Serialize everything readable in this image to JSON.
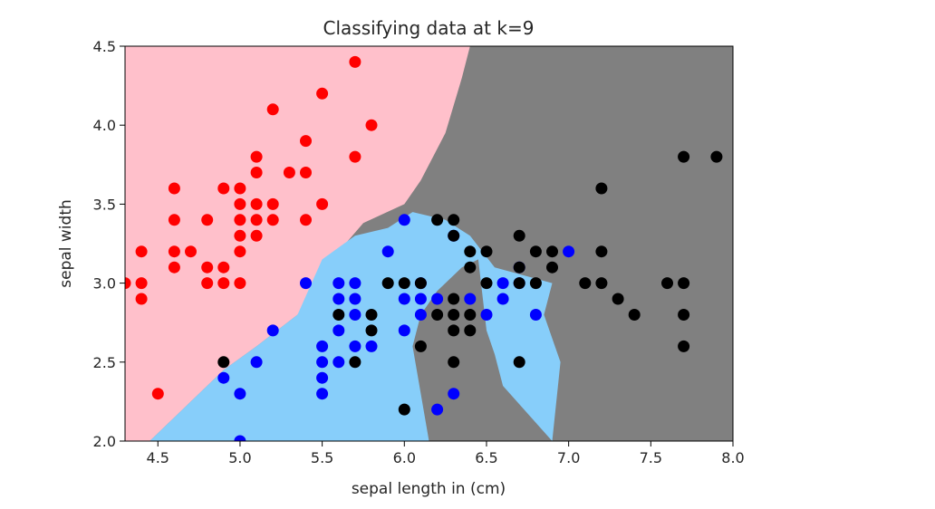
{
  "chart_data": {
    "type": "scatter",
    "title": "Classifying data at k=9",
    "xlabel": "sepal length in (cm)",
    "ylabel": "sepal width",
    "xlim": [
      4.3,
      8.0
    ],
    "ylim": [
      2.0,
      4.5
    ],
    "x_ticks": [
      "4.5",
      "5.0",
      "5.5",
      "6.0",
      "6.5",
      "7.0",
      "7.5",
      "8.0"
    ],
    "y_ticks": [
      "2.0",
      "2.5",
      "3.0",
      "3.5",
      "4.0",
      "4.5"
    ],
    "grid": false,
    "legend": "none",
    "decision_regions": [
      {
        "class": "red",
        "color": "#ffc0cb"
      },
      {
        "class": "blue",
        "color": "#87cefa"
      },
      {
        "class": "black",
        "color": "#808080"
      }
    ],
    "region_boundaries": {
      "pink_region": [
        [
          4.3,
          2.0
        ],
        [
          4.45,
          2.0
        ],
        [
          4.65,
          2.2
        ],
        [
          4.9,
          2.45
        ],
        [
          5.1,
          2.6
        ],
        [
          5.35,
          2.8
        ],
        [
          5.6,
          3.2
        ],
        [
          5.75,
          3.38
        ],
        [
          6.0,
          3.5
        ],
        [
          6.1,
          3.65
        ],
        [
          6.25,
          3.95
        ],
        [
          6.35,
          4.3
        ],
        [
          6.4,
          4.5
        ],
        [
          4.3,
          4.5
        ]
      ],
      "blue_region": [
        [
          4.45,
          2.0
        ],
        [
          6.15,
          2.0
        ],
        [
          6.05,
          2.6
        ],
        [
          6.1,
          2.8
        ],
        [
          6.2,
          2.95
        ],
        [
          6.35,
          3.1
        ],
        [
          6.45,
          3.15
        ],
        [
          6.5,
          2.7
        ],
        [
          6.55,
          2.55
        ],
        [
          6.6,
          2.35
        ],
        [
          6.9,
          2.0
        ],
        [
          6.95,
          2.5
        ],
        [
          6.85,
          2.8
        ],
        [
          6.9,
          3.0
        ],
        [
          6.55,
          3.1
        ],
        [
          6.4,
          3.3
        ],
        [
          6.25,
          3.4
        ],
        [
          6.05,
          3.45
        ],
        [
          5.9,
          3.35
        ],
        [
          5.7,
          3.3
        ],
        [
          5.5,
          3.15
        ],
        [
          5.35,
          2.8
        ],
        [
          5.1,
          2.6
        ],
        [
          4.9,
          2.45
        ],
        [
          4.65,
          2.2
        ]
      ]
    },
    "series": [
      {
        "color": "#ff0000",
        "points": [
          [
            4.3,
            3.0
          ],
          [
            4.4,
            2.9
          ],
          [
            4.4,
            3.0
          ],
          [
            4.4,
            3.2
          ],
          [
            4.5,
            2.3
          ],
          [
            4.6,
            3.1
          ],
          [
            4.6,
            3.2
          ],
          [
            4.6,
            3.4
          ],
          [
            4.6,
            3.6
          ],
          [
            4.7,
            3.2
          ],
          [
            4.8,
            3.0
          ],
          [
            4.8,
            3.1
          ],
          [
            4.8,
            3.4
          ],
          [
            4.9,
            3.0
          ],
          [
            4.9,
            3.1
          ],
          [
            4.9,
            3.6
          ],
          [
            5.0,
            3.0
          ],
          [
            5.0,
            3.2
          ],
          [
            5.0,
            3.3
          ],
          [
            5.0,
            3.4
          ],
          [
            5.0,
            3.5
          ],
          [
            5.0,
            3.6
          ],
          [
            5.1,
            3.3
          ],
          [
            5.1,
            3.4
          ],
          [
            5.1,
            3.5
          ],
          [
            5.1,
            3.7
          ],
          [
            5.1,
            3.8
          ],
          [
            5.2,
            3.4
          ],
          [
            5.2,
            3.5
          ],
          [
            5.2,
            4.1
          ],
          [
            5.3,
            3.7
          ],
          [
            5.4,
            3.4
          ],
          [
            5.4,
            3.7
          ],
          [
            5.4,
            3.9
          ],
          [
            5.5,
            3.5
          ],
          [
            5.5,
            4.2
          ],
          [
            5.7,
            3.8
          ],
          [
            5.7,
            4.4
          ],
          [
            5.8,
            4.0
          ]
        ]
      },
      {
        "color": "#0000ff",
        "points": [
          [
            4.9,
            2.4
          ],
          [
            5.0,
            2.0
          ],
          [
            5.0,
            2.3
          ],
          [
            5.1,
            2.5
          ],
          [
            5.2,
            2.7
          ],
          [
            5.4,
            3.0
          ],
          [
            5.5,
            2.3
          ],
          [
            5.5,
            2.4
          ],
          [
            5.5,
            2.5
          ],
          [
            5.5,
            2.6
          ],
          [
            5.6,
            2.5
          ],
          [
            5.6,
            2.7
          ],
          [
            5.6,
            2.9
          ],
          [
            5.6,
            3.0
          ],
          [
            5.7,
            2.6
          ],
          [
            5.7,
            2.8
          ],
          [
            5.7,
            2.9
          ],
          [
            5.7,
            3.0
          ],
          [
            5.8,
            2.6
          ],
          [
            5.9,
            3.2
          ],
          [
            6.0,
            2.7
          ],
          [
            6.0,
            2.9
          ],
          [
            6.0,
            3.4
          ],
          [
            6.1,
            2.8
          ],
          [
            6.1,
            2.9
          ],
          [
            6.1,
            3.0
          ],
          [
            6.2,
            2.2
          ],
          [
            6.2,
            2.9
          ],
          [
            6.3,
            2.3
          ],
          [
            6.3,
            3.3
          ],
          [
            6.4,
            2.9
          ],
          [
            6.5,
            2.8
          ],
          [
            6.6,
            2.9
          ],
          [
            6.6,
            3.0
          ],
          [
            6.7,
            3.0
          ],
          [
            6.7,
            3.1
          ],
          [
            6.8,
            2.8
          ],
          [
            7.0,
            3.2
          ]
        ]
      },
      {
        "color": "#000000",
        "points": [
          [
            4.9,
            2.5
          ],
          [
            5.6,
            2.8
          ],
          [
            5.7,
            2.5
          ],
          [
            5.8,
            2.7
          ],
          [
            5.8,
            2.8
          ],
          [
            5.9,
            3.0
          ],
          [
            6.0,
            2.2
          ],
          [
            6.0,
            3.0
          ],
          [
            6.1,
            2.6
          ],
          [
            6.1,
            3.0
          ],
          [
            6.2,
            2.8
          ],
          [
            6.2,
            3.4
          ],
          [
            6.3,
            2.5
          ],
          [
            6.3,
            2.7
          ],
          [
            6.3,
            2.8
          ],
          [
            6.3,
            2.9
          ],
          [
            6.3,
            3.3
          ],
          [
            6.3,
            3.4
          ],
          [
            6.4,
            2.7
          ],
          [
            6.4,
            2.8
          ],
          [
            6.4,
            3.1
          ],
          [
            6.4,
            3.2
          ],
          [
            6.5,
            3.0
          ],
          [
            6.5,
            3.2
          ],
          [
            6.7,
            2.5
          ],
          [
            6.7,
            3.0
          ],
          [
            6.7,
            3.1
          ],
          [
            6.7,
            3.3
          ],
          [
            6.8,
            3.0
          ],
          [
            6.8,
            3.2
          ],
          [
            6.9,
            3.1
          ],
          [
            6.9,
            3.2
          ],
          [
            7.1,
            3.0
          ],
          [
            7.2,
            3.0
          ],
          [
            7.2,
            3.2
          ],
          [
            7.2,
            3.6
          ],
          [
            7.3,
            2.9
          ],
          [
            7.4,
            2.8
          ],
          [
            7.6,
            3.0
          ],
          [
            7.7,
            2.6
          ],
          [
            7.7,
            2.8
          ],
          [
            7.7,
            3.0
          ],
          [
            7.7,
            3.8
          ],
          [
            7.9,
            3.8
          ]
        ]
      }
    ]
  }
}
